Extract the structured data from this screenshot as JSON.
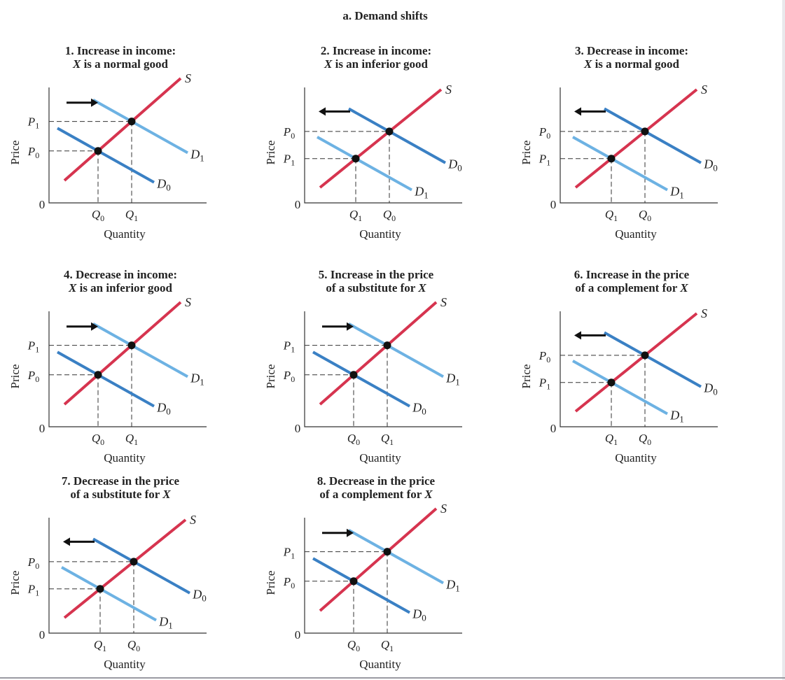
{
  "figure": {
    "title": "a. Demand shifts"
  },
  "colors": {
    "supply": "#d6344f",
    "d0": "#3a80c4",
    "d1": "#6db2e3",
    "dot": "#111111",
    "axis": "#333333"
  },
  "panels": [
    {
      "line1": "1. Increase in income:",
      "line2": "X is a normal good",
      "title_italic": "X",
      "shift": "right",
      "price_mode": "rise",
      "ylabel": "Price",
      "xlabel": "Quantity",
      "origin": "0",
      "q_left": "Q0",
      "q_right": "Q1",
      "p_top": "P1",
      "p_bot": "P0",
      "supply": "S",
      "d0": "D0",
      "d1": "D1"
    },
    {
      "line1": "2. Increase in income:",
      "line2": "X is an inferior good",
      "title_italic": "X",
      "shift": "left",
      "price_mode": "fall",
      "ylabel": "Price",
      "xlabel": "Quantity",
      "origin": "0",
      "q_left": "Q1",
      "q_right": "Q0",
      "p_top": "P0",
      "p_bot": "P1",
      "supply": "S",
      "d0": "D0",
      "d1": "D1"
    },
    {
      "line1": "3. Decrease in income:",
      "line2": "X is a normal good",
      "title_italic": "X",
      "shift": "left",
      "price_mode": "fall",
      "ylabel": "Price",
      "xlabel": "Quantity",
      "origin": "0",
      "q_left": "Q1",
      "q_right": "Q0",
      "p_top": "P0",
      "p_bot": "P1",
      "supply": "S",
      "d0": "D0",
      "d1": "D1"
    },
    {
      "line1": "4. Decrease in income:",
      "line2": "X is an inferior good",
      "title_italic": "X",
      "shift": "right",
      "price_mode": "rise",
      "ylabel": "Price",
      "xlabel": "Quantity",
      "origin": "0",
      "q_left": "Q0",
      "q_right": "Q1",
      "p_top": "P1",
      "p_bot": "P0",
      "supply": "S",
      "d0": "D0",
      "d1": "D1"
    },
    {
      "line1": "5. Increase in the price",
      "line2": "of a substitute for X",
      "title_italic": "X",
      "shift": "right",
      "price_mode": "rise",
      "ylabel": "Price",
      "xlabel": "Quantity",
      "origin": "0",
      "q_left": "Q0",
      "q_right": "Q1",
      "p_top": "P1",
      "p_bot": "P0",
      "supply": "S",
      "d0": "D0",
      "d1": "D1"
    },
    {
      "line1": "6. Increase in the price",
      "line2": "of a complement for X",
      "title_italic": "X",
      "shift": "left",
      "price_mode": "fall",
      "ylabel": "Price",
      "xlabel": "Quantity",
      "origin": "0",
      "q_left": "Q1",
      "q_right": "Q0",
      "p_top": "P0",
      "p_bot": "P1",
      "supply": "S",
      "d0": "D0",
      "d1": "D1"
    },
    {
      "line1": "7. Decrease in the price",
      "line2": "of a substitute for X",
      "title_italic": "X",
      "shift": "left",
      "price_mode": "fall",
      "ylabel": "Price",
      "xlabel": "Quantity",
      "origin": "0",
      "q_left": "Q1",
      "q_right": "Q0",
      "p_top": "P0",
      "p_bot": "P1",
      "supply": "S",
      "d0": "D0",
      "d1": "D1"
    },
    {
      "line1": "8. Decrease in the price",
      "line2": "of a complement for X",
      "title_italic": "X",
      "shift": "right",
      "price_mode": "rise",
      "ylabel": "Price",
      "xlabel": "Quantity",
      "origin": "0",
      "q_left": "Q0",
      "q_right": "Q1",
      "p_top": "P1",
      "p_bot": "P0",
      "supply": "S",
      "d0": "D0",
      "d1": "D1"
    }
  ]
}
